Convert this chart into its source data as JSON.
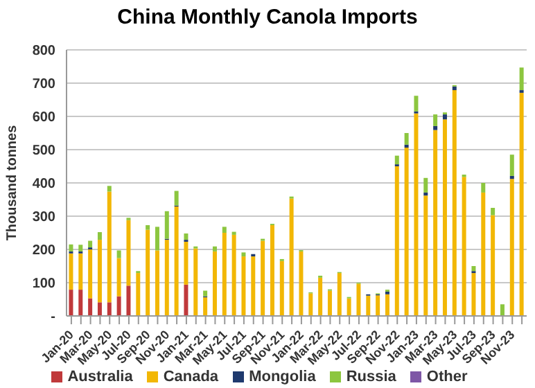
{
  "chart_data": {
    "type": "bar",
    "title": "China Monthly Canola Imports",
    "ylabel": "Thousand tonnes",
    "stacked": true,
    "grid": "y",
    "legend": "bottom",
    "categories": [
      "Jan-20",
      null,
      "Mar-20",
      null,
      "May-20",
      null,
      "Jul-20",
      null,
      "Sep-20",
      null,
      "Nov-20",
      null,
      "Jan-21",
      null,
      "Mar-21",
      null,
      "May-21",
      null,
      "Jul-21",
      null,
      "Sep-21",
      null,
      "Nov-21",
      null,
      "Jan-22",
      null,
      "Mar-22",
      null,
      "May-22",
      null,
      "Jul-22",
      null,
      "Sep-22",
      null,
      "Nov-22",
      null,
      "Jan-23",
      null,
      "Mar-23",
      null,
      "May-23",
      null,
      "Jul-23",
      null,
      "Sep-23",
      null,
      "Nov-23",
      null
    ],
    "ylim": [
      0,
      800
    ],
    "yticks": [
      {
        "value": 0,
        "label": "-"
      },
      100,
      200,
      300,
      400,
      500,
      600,
      700,
      800
    ],
    "series": [
      {
        "name": "Australia",
        "color": "#c0393b",
        "values": [
          79,
          79,
          53,
          41,
          41,
          59,
          91,
          0,
          0,
          0,
          0,
          0,
          94,
          0,
          0,
          0,
          0,
          0,
          0,
          0,
          0,
          0,
          0,
          0,
          0,
          0,
          0,
          0,
          0,
          0,
          0,
          0,
          0,
          0,
          0,
          0,
          0,
          0,
          0,
          0,
          0,
          0,
          0,
          0,
          0,
          0,
          0,
          0
        ]
      },
      {
        "name": "Canada",
        "color": "#f2b705",
        "values": [
          109,
          109,
          147,
          188,
          333,
          115,
          197,
          129,
          259,
          197,
          229,
          329,
          129,
          203,
          56,
          194,
          250,
          244,
          179,
          179,
          226,
          273,
          165,
          353,
          194,
          68,
          115,
          76,
          129,
          53,
          97,
          61,
          62,
          65,
          450,
          506,
          609,
          362,
          559,
          591,
          679,
          418,
          129,
          371,
          303,
          0,
          412,
          671
        ]
      },
      {
        "name": "Mongolia",
        "color": "#1f3a6e",
        "values": [
          6,
          6,
          6,
          0,
          0,
          0,
          0,
          0,
          0,
          0,
          3,
          3,
          6,
          0,
          3,
          0,
          0,
          0,
          0,
          7,
          0,
          0,
          0,
          0,
          0,
          0,
          0,
          0,
          0,
          0,
          0,
          4,
          3,
          8,
          6,
          9,
          6,
          9,
          12,
          15,
          11,
          0,
          6,
          0,
          0,
          0,
          9,
          8
        ]
      },
      {
        "name": "Russia",
        "color": "#8cc63f",
        "values": [
          21,
          20,
          20,
          23,
          17,
          23,
          7,
          6,
          14,
          71,
          83,
          44,
          19,
          6,
          17,
          15,
          18,
          9,
          12,
          0,
          6,
          4,
          6,
          6,
          4,
          3,
          6,
          4,
          3,
          4,
          3,
          0,
          3,
          6,
          26,
          35,
          47,
          44,
          35,
          6,
          4,
          7,
          15,
          29,
          22,
          35,
          64,
          68
        ]
      },
      {
        "name": "Other",
        "color": "#7e57a6",
        "values": [
          0,
          0,
          0,
          0,
          0,
          0,
          0,
          0,
          0,
          0,
          0,
          0,
          0,
          0,
          0,
          0,
          0,
          0,
          0,
          0,
          0,
          0,
          0,
          0,
          0,
          0,
          0,
          0,
          0,
          0,
          0,
          0,
          0,
          0,
          0,
          0,
          0,
          0,
          0,
          0,
          0,
          0,
          0,
          0,
          0,
          0,
          0,
          0
        ]
      }
    ]
  }
}
